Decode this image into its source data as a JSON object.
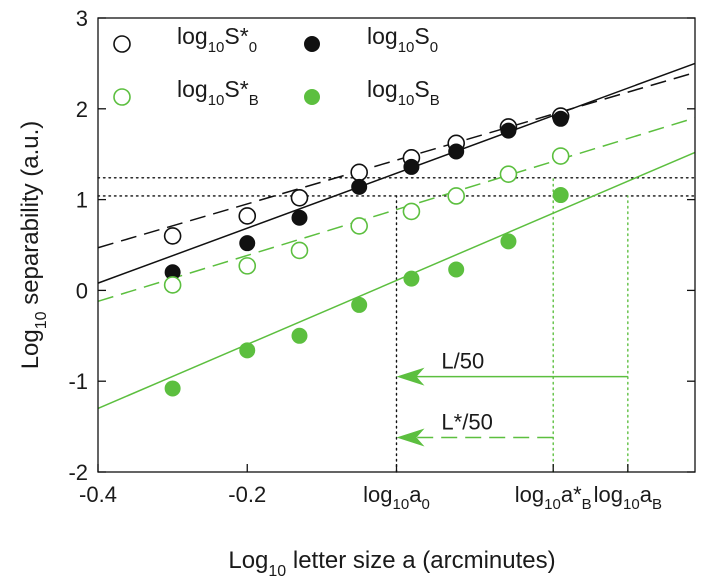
{
  "colors": {
    "black": "#111111",
    "green": "#5cbf3f"
  },
  "chart_data": {
    "type": "scatter",
    "xlabel": "Log",
    "xlabel_sub": "10",
    "xlabel_rest": " letter size a (arcminutes)",
    "ylabel": "Log",
    "ylabel_sub": "10",
    "ylabel_rest": " separability (a.u.)",
    "xlim": [
      -0.4,
      0.4
    ],
    "ylim": [
      -2,
      3
    ],
    "x_ticks": [
      {
        "value": -0.4,
        "label": "-0.4"
      },
      {
        "value": -0.2,
        "label": "-0.2"
      }
    ],
    "x_special_ticks": [
      {
        "value": 0.0,
        "base": "log",
        "sub": "10",
        "main": "a",
        "main_sub": "0",
        "star": ""
      },
      {
        "value": 0.21,
        "base": "log",
        "sub": "10",
        "main": "a",
        "main_sub": "B",
        "star": "*"
      },
      {
        "value": 0.31,
        "base": "log",
        "sub": "10",
        "main": "a",
        "main_sub": "B",
        "star": ""
      }
    ],
    "y_ticks": [
      -2,
      -1,
      0,
      1,
      2,
      3
    ],
    "legend": {
      "placement": "top-left",
      "entries": [
        {
          "series": 0,
          "base": "log",
          "sub": "10",
          "main": "S",
          "star": "*",
          "main_sub": "0"
        },
        {
          "series": 1,
          "base": "log",
          "sub": "10",
          "main": "S",
          "star": "",
          "main_sub": "0"
        },
        {
          "series": 2,
          "base": "log",
          "sub": "10",
          "main": "S",
          "star": "*",
          "main_sub": "B"
        },
        {
          "series": 3,
          "base": "log",
          "sub": "10",
          "main": "S",
          "star": "",
          "main_sub": "B"
        }
      ]
    },
    "series": [
      {
        "color": "black",
        "marker": "open",
        "points": [
          [
            -0.3,
            0.6
          ],
          [
            -0.2,
            0.82
          ],
          [
            -0.13,
            1.02
          ],
          [
            -0.05,
            1.3
          ],
          [
            0.02,
            1.46
          ],
          [
            0.08,
            1.62
          ],
          [
            0.15,
            1.8
          ],
          [
            0.22,
            1.92
          ]
        ],
        "fit": {
          "style": "dashed",
          "x": [
            -0.4,
            0.4
          ],
          "y": [
            0.47,
            2.4
          ]
        }
      },
      {
        "color": "black",
        "marker": "filled",
        "points": [
          [
            -0.3,
            0.2
          ],
          [
            -0.2,
            0.52
          ],
          [
            -0.13,
            0.8
          ],
          [
            -0.05,
            1.14
          ],
          [
            0.02,
            1.36
          ],
          [
            0.08,
            1.53
          ],
          [
            0.15,
            1.76
          ],
          [
            0.22,
            1.89
          ]
        ],
        "fit": {
          "style": "solid",
          "x": [
            -0.4,
            0.4
          ],
          "y": [
            0.08,
            2.5
          ]
        }
      },
      {
        "color": "green",
        "marker": "open",
        "points": [
          [
            -0.3,
            0.06
          ],
          [
            -0.2,
            0.27
          ],
          [
            -0.13,
            0.44
          ],
          [
            -0.05,
            0.71
          ],
          [
            0.02,
            0.87
          ],
          [
            0.08,
            1.04
          ],
          [
            0.15,
            1.28
          ],
          [
            0.22,
            1.48
          ]
        ],
        "fit": {
          "style": "dashed",
          "x": [
            -0.4,
            0.4
          ],
          "y": [
            -0.12,
            1.9
          ]
        }
      },
      {
        "color": "green",
        "marker": "filled",
        "points": [
          [
            -0.3,
            -1.08
          ],
          [
            -0.2,
            -0.66
          ],
          [
            -0.13,
            -0.5
          ],
          [
            -0.05,
            -0.16
          ],
          [
            0.02,
            0.13
          ],
          [
            0.08,
            0.23
          ],
          [
            0.15,
            0.54
          ],
          [
            0.22,
            1.05
          ]
        ],
        "fit": {
          "style": "solid",
          "x": [
            -0.4,
            0.4
          ],
          "y": [
            -1.3,
            1.52
          ]
        }
      }
    ],
    "reference_lines": [
      {
        "kind": "h",
        "y": 1.04,
        "x_from": -0.4,
        "x_to": 0.4,
        "color": "black",
        "dash": "dotted"
      },
      {
        "kind": "h",
        "y": 1.24,
        "x_from": -0.4,
        "x_to": 0.4,
        "color": "black",
        "dash": "dotted"
      },
      {
        "kind": "v",
        "x": 0.0,
        "y_from": -2,
        "y_to": 1.04,
        "color": "black",
        "dash": "dotted"
      },
      {
        "kind": "v",
        "x": 0.21,
        "y_from": -2,
        "y_to": 1.24,
        "color": "green",
        "dash": "dotted"
      },
      {
        "kind": "v",
        "x": 0.31,
        "y_from": -2,
        "y_to": 1.04,
        "color": "green",
        "dash": "dotted"
      }
    ],
    "annotations": [
      {
        "text": "L/50",
        "x_from": 0.31,
        "x_to": 0.0,
        "y": -0.95,
        "style": "solid",
        "color": "green",
        "label_x": 0.02
      },
      {
        "text": "L*/50",
        "x_from": 0.21,
        "x_to": 0.0,
        "y": -1.62,
        "style": "dashed",
        "color": "green",
        "label_x": 0.02
      }
    ]
  }
}
